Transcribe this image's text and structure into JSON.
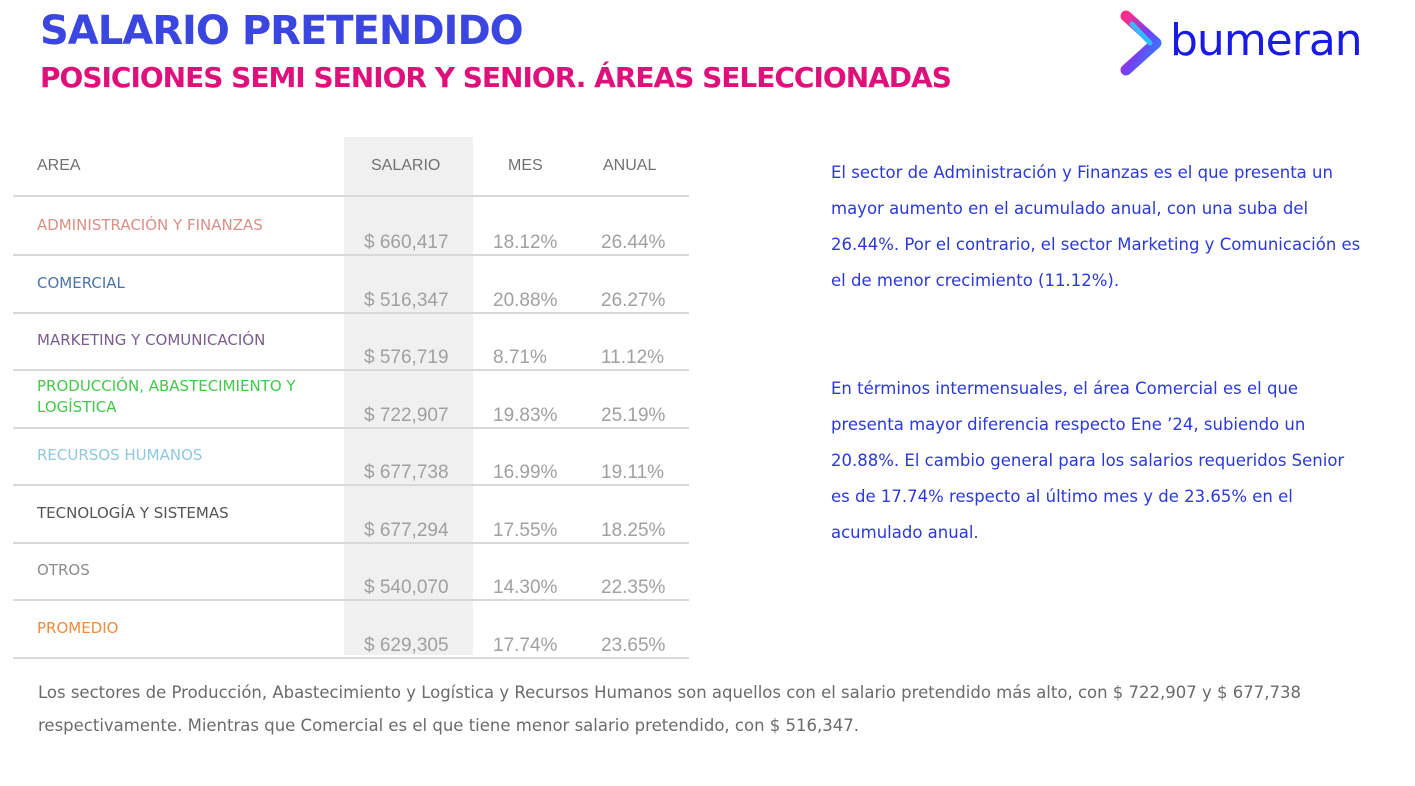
{
  "header": {
    "title": "SALARIO PRETENDIDO",
    "subtitle": "POSICIONES SEMI SENIOR Y SENIOR. ÁREAS SELECCIONADAS",
    "logo_text": "bumeran",
    "logo_icon": "bumeran-chevron-logo-icon",
    "title_color": "#3b46e0",
    "subtitle_color": "#e0107a",
    "logo_color": "#1a1ae6"
  },
  "table": {
    "columns": [
      "AREA",
      "SALARIO",
      "MES",
      "ANUAL"
    ],
    "rows": [
      {
        "area": "ADMINISTRACIÓN Y FINANZAS",
        "salario": "$ 660,417",
        "mes": "18.12%",
        "anual": "26.44%",
        "color": "#d98f86"
      },
      {
        "area": "COMERCIAL",
        "salario": "$ 516,347",
        "mes": "20.88%",
        "anual": "26.27%",
        "color": "#4a74a6"
      },
      {
        "area": "MARKETING Y COMUNICACIÓN",
        "salario": "$ 576,719",
        "mes": "8.71%",
        "anual": "11.12%",
        "color": "#7a5c8e"
      },
      {
        "area": "PRODUCCIÓN, ABASTECIMIENTO Y LOGÍSTICA",
        "salario": "$ 722,907",
        "mes": "19.83%",
        "anual": "25.19%",
        "color": "#43c84a"
      },
      {
        "area": "RECURSOS HUMANOS",
        "salario": "$ 677,738",
        "mes": "16.99%",
        "anual": "19.11%",
        "color": "#8ec7dd"
      },
      {
        "area": "TECNOLOGÍA Y SISTEMAS",
        "salario": "$ 677,294",
        "mes": "17.55%",
        "anual": "18.25%",
        "color": "#555555"
      },
      {
        "area": "OTROS",
        "salario": "$ 540,070",
        "mes": "14.30%",
        "anual": "22.35%",
        "color": "#8c8c8c"
      },
      {
        "area": "PROMEDIO",
        "salario": "$ 629,305",
        "mes": "17.74%",
        "anual": "23.65%",
        "color": "#f08a3c"
      }
    ]
  },
  "commentary": {
    "paragraph1": "El sector de Administración y Finanzas es el que presenta un mayor aumento en el acumulado anual, con una suba del 26.44%. Por el contrario, el sector Marketing y Comunicación es el de menor crecimiento (11.12%).",
    "paragraph2": "En términos intermensuales, el área Comercial es el que presenta mayor diferencia respecto Ene ’24, subiendo un 20.88%. El cambio general para los salarios requeridos Senior es de 17.74% respecto al último mes y de 23.65% en el acumulado anual.",
    "color": "#2b39d8"
  },
  "footer": {
    "text": "Los sectores de Producción, Abastecimiento y Logística y Recursos Humanos son aquellos con el salario pretendido más alto, con $ 722,907 y $ 677,738 respectivamente. Mientras que Comercial es el que tiene menor salario pretendido, con $ 516,347."
  }
}
